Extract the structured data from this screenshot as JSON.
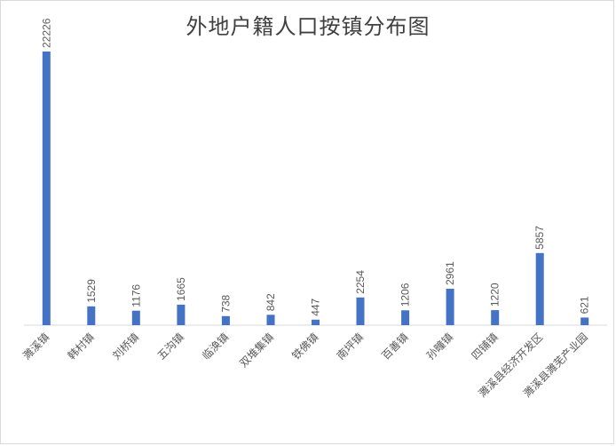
{
  "chart_data": {
    "type": "bar",
    "title": "外地户籍人口按镇分布图",
    "xlabel": "",
    "ylabel": "",
    "categories": [
      "濉溪镇",
      "韩村镇",
      "刘桥镇",
      "五沟镇",
      "临涣镇",
      "双堆集镇",
      "铁佛镇",
      "南坪镇",
      "百善镇",
      "孙疃镇",
      "四铺镇",
      "濉溪县经济开发区",
      "濉溪县濉芜产业园"
    ],
    "values": [
      22226,
      1529,
      1176,
      1665,
      738,
      842,
      447,
      2254,
      1206,
      2961,
      1220,
      5857,
      621
    ],
    "ylim": [
      0,
      22226
    ],
    "grid": false,
    "legend": "none",
    "bar_color": "#4472c4"
  }
}
